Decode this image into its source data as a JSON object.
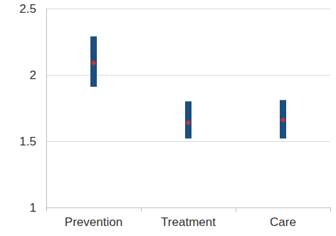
{
  "chart_data": {
    "type": "scatter",
    "categories": [
      "Prevention",
      "Treatment",
      "Care"
    ],
    "values": [
      2.09,
      1.64,
      1.66
    ],
    "ci_low": [
      1.91,
      1.52,
      1.52
    ],
    "ci_high": [
      2.29,
      1.8,
      1.81
    ],
    "color": "#e8312a",
    "error_color": "#1c4e80",
    "marker": "diamond",
    "ylim": [
      1,
      2.5
    ],
    "yticks": [
      1,
      1.5,
      2,
      2.5
    ],
    "grid": true
  }
}
